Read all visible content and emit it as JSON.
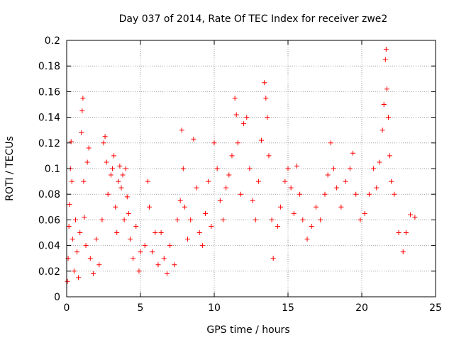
{
  "chart_data": {
    "type": "scatter",
    "title": "Day 037 of 2014, Rate Of TEC Index for receiver zwe2",
    "xlabel": "GPS time / hours",
    "ylabel": "ROTI / TECUs",
    "xlim": [
      0,
      25
    ],
    "ylim": [
      0,
      0.2
    ],
    "x_ticks": [
      0,
      5,
      10,
      15,
      20,
      25
    ],
    "x_tick_labels": [
      "0",
      "5",
      "10",
      "15",
      "20",
      "25"
    ],
    "y_ticks": [
      0,
      0.02,
      0.04,
      0.06,
      0.08,
      0.1,
      0.12,
      0.14,
      0.16,
      0.18,
      0.2
    ],
    "y_tick_labels": [
      "0",
      "0.02",
      "0.04",
      "0.06",
      "0.08",
      "0.1",
      "0.12",
      "0.14",
      "0.16",
      "0.18",
      "0.2"
    ],
    "grid": true,
    "legend": "none",
    "marker": "plus",
    "color": "#ff0000",
    "series": [
      {
        "values": [
          [
            0.05,
            0.012
          ],
          [
            0.1,
            0.03
          ],
          [
            0.15,
            0.055
          ],
          [
            0.2,
            0.072
          ],
          [
            0.25,
            0.1
          ],
          [
            0.3,
            0.121
          ],
          [
            0.35,
            0.09
          ],
          [
            0.4,
            0.045
          ],
          [
            0.5,
            0.02
          ],
          [
            0.6,
            0.06
          ],
          [
            0.7,
            0.035
          ],
          [
            0.8,
            0.015
          ],
          [
            0.9,
            0.05
          ],
          [
            1.0,
            0.128
          ],
          [
            1.05,
            0.145
          ],
          [
            1.1,
            0.155
          ],
          [
            1.15,
            0.09
          ],
          [
            1.2,
            0.062
          ],
          [
            1.3,
            0.04
          ],
          [
            1.4,
            0.105
          ],
          [
            1.5,
            0.116
          ],
          [
            1.6,
            0.03
          ],
          [
            1.8,
            0.018
          ],
          [
            2.0,
            0.045
          ],
          [
            2.2,
            0.025
          ],
          [
            2.4,
            0.06
          ],
          [
            2.5,
            0.12
          ],
          [
            2.6,
            0.125
          ],
          [
            2.7,
            0.105
          ],
          [
            2.8,
            0.08
          ],
          [
            3.0,
            0.095
          ],
          [
            3.1,
            0.1
          ],
          [
            3.2,
            0.11
          ],
          [
            3.3,
            0.07
          ],
          [
            3.4,
            0.05
          ],
          [
            3.5,
            0.09
          ],
          [
            3.6,
            0.102
          ],
          [
            3.7,
            0.085
          ],
          [
            3.8,
            0.095
          ],
          [
            3.9,
            0.06
          ],
          [
            4.0,
            0.1
          ],
          [
            4.1,
            0.078
          ],
          [
            4.2,
            0.065
          ],
          [
            4.3,
            0.045
          ],
          [
            4.5,
            0.03
          ],
          [
            4.7,
            0.055
          ],
          [
            4.9,
            0.02
          ],
          [
            5.0,
            0.035
          ],
          [
            5.3,
            0.04
          ],
          [
            5.5,
            0.09
          ],
          [
            5.6,
            0.07
          ],
          [
            5.8,
            0.035
          ],
          [
            6.0,
            0.05
          ],
          [
            6.2,
            0.025
          ],
          [
            6.4,
            0.05
          ],
          [
            6.6,
            0.03
          ],
          [
            6.8,
            0.018
          ],
          [
            7.0,
            0.04
          ],
          [
            7.3,
            0.025
          ],
          [
            7.5,
            0.06
          ],
          [
            7.7,
            0.075
          ],
          [
            7.8,
            0.13
          ],
          [
            7.9,
            0.1
          ],
          [
            8.0,
            0.07
          ],
          [
            8.2,
            0.045
          ],
          [
            8.4,
            0.06
          ],
          [
            8.6,
            0.123
          ],
          [
            8.8,
            0.085
          ],
          [
            9.0,
            0.05
          ],
          [
            9.2,
            0.04
          ],
          [
            9.4,
            0.065
          ],
          [
            9.6,
            0.09
          ],
          [
            9.8,
            0.055
          ],
          [
            10.0,
            0.12
          ],
          [
            10.2,
            0.1
          ],
          [
            10.4,
            0.075
          ],
          [
            10.6,
            0.06
          ],
          [
            10.8,
            0.085
          ],
          [
            11.0,
            0.095
          ],
          [
            11.2,
            0.11
          ],
          [
            11.4,
            0.155
          ],
          [
            11.5,
            0.142
          ],
          [
            11.6,
            0.12
          ],
          [
            11.8,
            0.08
          ],
          [
            12.0,
            0.135
          ],
          [
            12.2,
            0.14
          ],
          [
            12.4,
            0.1
          ],
          [
            12.6,
            0.075
          ],
          [
            12.8,
            0.06
          ],
          [
            13.0,
            0.09
          ],
          [
            13.2,
            0.122
          ],
          [
            13.4,
            0.167
          ],
          [
            13.5,
            0.155
          ],
          [
            13.6,
            0.14
          ],
          [
            13.7,
            0.11
          ],
          [
            13.9,
            0.06
          ],
          [
            14.0,
            0.03
          ],
          [
            14.3,
            0.055
          ],
          [
            14.5,
            0.07
          ],
          [
            14.8,
            0.09
          ],
          [
            15.0,
            0.1
          ],
          [
            15.2,
            0.085
          ],
          [
            15.4,
            0.065
          ],
          [
            15.6,
            0.102
          ],
          [
            15.8,
            0.08
          ],
          [
            16.0,
            0.06
          ],
          [
            16.3,
            0.045
          ],
          [
            16.6,
            0.055
          ],
          [
            16.9,
            0.07
          ],
          [
            17.2,
            0.06
          ],
          [
            17.5,
            0.08
          ],
          [
            17.7,
            0.095
          ],
          [
            17.9,
            0.12
          ],
          [
            18.1,
            0.1
          ],
          [
            18.3,
            0.085
          ],
          [
            18.6,
            0.07
          ],
          [
            18.9,
            0.09
          ],
          [
            19.2,
            0.1
          ],
          [
            19.4,
            0.112
          ],
          [
            19.6,
            0.08
          ],
          [
            19.9,
            0.06
          ],
          [
            20.2,
            0.065
          ],
          [
            20.5,
            0.08
          ],
          [
            20.8,
            0.1
          ],
          [
            21.0,
            0.085
          ],
          [
            21.2,
            0.105
          ],
          [
            21.4,
            0.13
          ],
          [
            21.5,
            0.15
          ],
          [
            21.6,
            0.185
          ],
          [
            21.65,
            0.193
          ],
          [
            21.7,
            0.162
          ],
          [
            21.8,
            0.14
          ],
          [
            21.9,
            0.11
          ],
          [
            22.0,
            0.09
          ],
          [
            22.2,
            0.08
          ],
          [
            22.5,
            0.05
          ],
          [
            22.8,
            0.035
          ],
          [
            23.0,
            0.05
          ],
          [
            23.3,
            0.064
          ],
          [
            23.6,
            0.062
          ]
        ]
      }
    ]
  }
}
